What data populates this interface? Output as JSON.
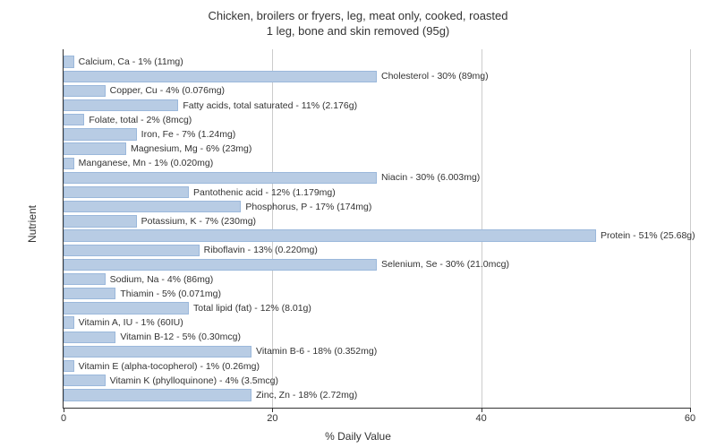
{
  "chart": {
    "type": "bar-horizontal",
    "title_line1": "Chicken, broilers or fryers, leg, meat only, cooked, roasted",
    "title_line2": "1 leg, bone and skin removed (95g)",
    "title_fontsize": 13,
    "x_label": "% Daily Value",
    "y_label": "Nutrient",
    "label_fontsize": 12,
    "bar_label_fontsize": 10.5,
    "xlim": [
      0,
      60
    ],
    "xtick_step": 20,
    "xticks": [
      0,
      20,
      40,
      60
    ],
    "background_color": "#ffffff",
    "grid_color": "#cccccc",
    "bar_fill": "#b8cce4",
    "bar_border": "#9bb8db",
    "text_color": "#333333",
    "nutrients": [
      {
        "name": "Calcium, Ca",
        "dv": 1,
        "amount": "11mg",
        "label": "Calcium, Ca - 1% (11mg)"
      },
      {
        "name": "Cholesterol",
        "dv": 30,
        "amount": "89mg",
        "label": "Cholesterol - 30% (89mg)"
      },
      {
        "name": "Copper, Cu",
        "dv": 4,
        "amount": "0.076mg",
        "label": "Copper, Cu - 4% (0.076mg)"
      },
      {
        "name": "Fatty acids, total saturated",
        "dv": 11,
        "amount": "2.176g",
        "label": "Fatty acids, total saturated - 11% (2.176g)"
      },
      {
        "name": "Folate, total",
        "dv": 2,
        "amount": "8mcg",
        "label": "Folate, total - 2% (8mcg)"
      },
      {
        "name": "Iron, Fe",
        "dv": 7,
        "amount": "1.24mg",
        "label": "Iron, Fe - 7% (1.24mg)"
      },
      {
        "name": "Magnesium, Mg",
        "dv": 6,
        "amount": "23mg",
        "label": "Magnesium, Mg - 6% (23mg)"
      },
      {
        "name": "Manganese, Mn",
        "dv": 1,
        "amount": "0.020mg",
        "label": "Manganese, Mn - 1% (0.020mg)"
      },
      {
        "name": "Niacin",
        "dv": 30,
        "amount": "6.003mg",
        "label": "Niacin - 30% (6.003mg)"
      },
      {
        "name": "Pantothenic acid",
        "dv": 12,
        "amount": "1.179mg",
        "label": "Pantothenic acid - 12% (1.179mg)"
      },
      {
        "name": "Phosphorus, P",
        "dv": 17,
        "amount": "174mg",
        "label": "Phosphorus, P - 17% (174mg)"
      },
      {
        "name": "Potassium, K",
        "dv": 7,
        "amount": "230mg",
        "label": "Potassium, K - 7% (230mg)"
      },
      {
        "name": "Protein",
        "dv": 51,
        "amount": "25.68g",
        "label": "Protein - 51% (25.68g)"
      },
      {
        "name": "Riboflavin",
        "dv": 13,
        "amount": "0.220mg",
        "label": "Riboflavin - 13% (0.220mg)"
      },
      {
        "name": "Selenium, Se",
        "dv": 30,
        "amount": "21.0mcg",
        "label": "Selenium, Se - 30% (21.0mcg)"
      },
      {
        "name": "Sodium, Na",
        "dv": 4,
        "amount": "86mg",
        "label": "Sodium, Na - 4% (86mg)"
      },
      {
        "name": "Thiamin",
        "dv": 5,
        "amount": "0.071mg",
        "label": "Thiamin - 5% (0.071mg)"
      },
      {
        "name": "Total lipid (fat)",
        "dv": 12,
        "amount": "8.01g",
        "label": "Total lipid (fat) - 12% (8.01g)"
      },
      {
        "name": "Vitamin A, IU",
        "dv": 1,
        "amount": "60IU",
        "label": "Vitamin A, IU - 1% (60IU)"
      },
      {
        "name": "Vitamin B-12",
        "dv": 5,
        "amount": "0.30mcg",
        "label": "Vitamin B-12 - 5% (0.30mcg)"
      },
      {
        "name": "Vitamin B-6",
        "dv": 18,
        "amount": "0.352mg",
        "label": "Vitamin B-6 - 18% (0.352mg)"
      },
      {
        "name": "Vitamin E (alpha-tocopherol)",
        "dv": 1,
        "amount": "0.26mg",
        "label": "Vitamin E (alpha-tocopherol) - 1% (0.26mg)"
      },
      {
        "name": "Vitamin K (phylloquinone)",
        "dv": 4,
        "amount": "3.5mcg",
        "label": "Vitamin K (phylloquinone) - 4% (3.5mcg)"
      },
      {
        "name": "Zinc, Zn",
        "dv": 18,
        "amount": "2.72mg",
        "label": "Zinc, Zn - 18% (2.72mg)"
      }
    ]
  }
}
